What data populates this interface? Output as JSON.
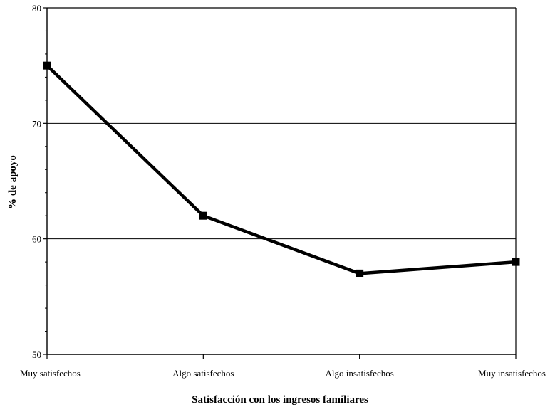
{
  "chart_data": {
    "type": "line",
    "title": "",
    "xlabel": "Satisfacción con los ingresos familiares",
    "ylabel": "% de apoyo",
    "categories": [
      "Muy satisfechos",
      "Algo satisfechos",
      "Algo insatisfechos",
      "Muy insatisfechos"
    ],
    "series": [
      {
        "values": [
          75,
          62,
          57,
          58
        ]
      }
    ],
    "ylim": [
      50,
      80
    ],
    "yticks": [
      "50",
      "60",
      "70",
      "80"
    ],
    "grid": "horizontal at major ticks",
    "legend": "none",
    "line_color": "#000000"
  }
}
